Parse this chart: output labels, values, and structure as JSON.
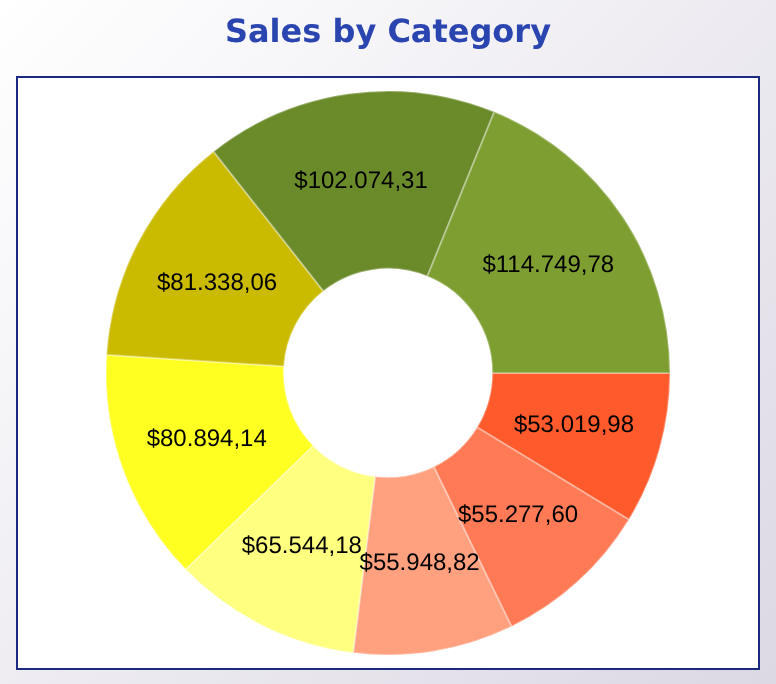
{
  "chart_data": {
    "type": "donut",
    "title": "Sales by Category",
    "categories": [
      null,
      null,
      null,
      null,
      null,
      null,
      null,
      null
    ],
    "values": [
      53019.98,
      55277.6,
      55948.82,
      65544.18,
      80894.14,
      81338.06,
      102074.31,
      114749.78
    ],
    "value_labels": [
      "$53.019,98",
      "$55.277,60",
      "$55.948,82",
      "$65.544,18",
      "$80.894,14",
      "$81.338,06",
      "$102.074,31",
      "$114.749,78"
    ],
    "colors": [
      "#ff5a2c",
      "#ff7a55",
      "#ffa07e",
      "#ffff80",
      "#ffff22",
      "#cbbb00",
      "#6b8a2a",
      "#7e9e32"
    ],
    "legend": false
  }
}
